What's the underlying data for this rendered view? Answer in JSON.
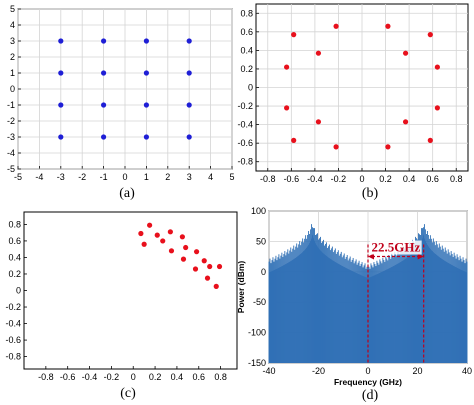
{
  "colors": {
    "blue_points": "#1f1fd6",
    "red_points": "#e8101c",
    "spectrum": "#2e6fb5",
    "annotation": "#c0001a",
    "grid": "#d4d4d4"
  },
  "chart_data": [
    {
      "type": "scatter",
      "panel": "a",
      "caption": "(a)",
      "xlim": [
        -5,
        5
      ],
      "ylim": [
        -5,
        5
      ],
      "xticks": [
        "-5",
        "-4",
        "-3",
        "-2",
        "-1",
        "0",
        "1",
        "2",
        "3",
        "4",
        "5"
      ],
      "yticks": [
        "5",
        "4",
        "3",
        "2",
        "1",
        "0",
        "-1",
        "-2",
        "-3",
        "-4",
        "-5"
      ],
      "grid": true,
      "marker_color": "#1f1fd6",
      "points": [
        [
          -3,
          3
        ],
        [
          -1,
          3
        ],
        [
          1,
          3
        ],
        [
          3,
          3
        ],
        [
          -3,
          1
        ],
        [
          -1,
          1
        ],
        [
          1,
          1
        ],
        [
          3,
          1
        ],
        [
          -3,
          -1
        ],
        [
          -1,
          -1
        ],
        [
          1,
          -1
        ],
        [
          3,
          -1
        ],
        [
          -3,
          -3
        ],
        [
          -1,
          -3
        ],
        [
          1,
          -3
        ],
        [
          3,
          -3
        ]
      ]
    },
    {
      "type": "scatter",
      "panel": "b",
      "caption": "(b)",
      "xlim": [
        -0.9,
        0.9
      ],
      "ylim": [
        -0.9,
        0.9
      ],
      "xticks": [
        "-0.8",
        "-0.6",
        "-0.4",
        "-0.2",
        "0",
        "0.2",
        "0.4",
        "0.6",
        "0.8"
      ],
      "yticks": [
        "0.8",
        "0.6",
        "0.4",
        "0.2",
        "0",
        "-0.2",
        "-0.4",
        "-0.6",
        "-0.8"
      ],
      "grid": true,
      "marker_color": "#e8101c",
      "points": [
        [
          -0.22,
          0.66
        ],
        [
          0.22,
          0.66
        ],
        [
          -0.58,
          0.57
        ],
        [
          0.58,
          0.57
        ],
        [
          -0.37,
          0.37
        ],
        [
          0.37,
          0.37
        ],
        [
          -0.64,
          0.22
        ],
        [
          0.64,
          0.22
        ],
        [
          -0.64,
          -0.22
        ],
        [
          0.64,
          -0.22
        ],
        [
          -0.37,
          -0.37
        ],
        [
          0.37,
          -0.37
        ],
        [
          -0.58,
          -0.57
        ],
        [
          0.58,
          -0.57
        ],
        [
          -0.22,
          -0.64
        ],
        [
          0.22,
          -0.64
        ]
      ]
    },
    {
      "type": "scatter",
      "panel": "c",
      "caption": "(c)",
      "xlim": [
        -1.0,
        0.95
      ],
      "ylim": [
        -0.95,
        0.95
      ],
      "xticks": [
        "-0.8",
        "-0.6",
        "-0.4",
        "-0.2",
        "0",
        "0.2",
        "0.4",
        "0.6",
        "0.8"
      ],
      "yticks": [
        "0.8",
        "0.6",
        "0.4",
        "0.2",
        "0",
        "-0.2",
        "-0.4",
        "-0.6",
        "-0.8"
      ],
      "grid": false,
      "marker_color": "#e8101c",
      "points": [
        [
          0.15,
          0.79
        ],
        [
          0.07,
          0.69
        ],
        [
          0.22,
          0.67
        ],
        [
          0.34,
          0.71
        ],
        [
          0.1,
          0.56
        ],
        [
          0.27,
          0.6
        ],
        [
          0.45,
          0.65
        ],
        [
          0.48,
          0.52
        ],
        [
          0.35,
          0.48
        ],
        [
          0.58,
          0.47
        ],
        [
          0.79,
          0.29
        ],
        [
          0.46,
          0.38
        ],
        [
          0.65,
          0.36
        ],
        [
          0.7,
          0.29
        ],
        [
          0.57,
          0.26
        ],
        [
          0.68,
          0.15
        ],
        [
          0.76,
          0.05
        ]
      ]
    },
    {
      "type": "line",
      "panel": "d",
      "caption": "(d)",
      "xlabel": "Frequency (GHz)",
      "ylabel": "Power (dBm)",
      "xlim": [
        -40,
        40
      ],
      "ylim": [
        -150,
        100
      ],
      "xticks": [
        "-40",
        "-20",
        "0",
        "20",
        "40"
      ],
      "yticks": [
        "100",
        "50",
        "0",
        "-50",
        "-100",
        "-150"
      ],
      "grid": true,
      "line_color": "#2e6fb5",
      "peaks": [
        -22.5,
        22.5
      ],
      "peak_power": 83,
      "annotation": {
        "text": "22.5GHz",
        "from_x": 0,
        "to_x": 22.5,
        "color": "#c0001a"
      }
    }
  ]
}
